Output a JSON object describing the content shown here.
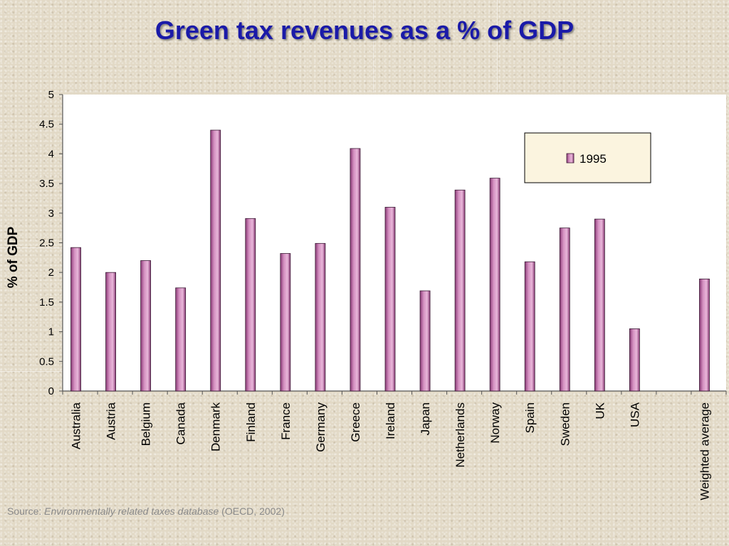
{
  "title": "Green tax revenues as a % of GDP",
  "source": {
    "prefix": "Source: ",
    "name": "Environmentally related taxes database",
    "suffix": " (OECD, 2002)"
  },
  "colors": {
    "title": "#1a1aa8",
    "bar": "#d48fc0",
    "bar_dark": "#8a3a76",
    "plot_bg": "#ffffff",
    "legend_bg": "#fbf4df"
  },
  "chart_data": {
    "type": "bar",
    "title": "Green tax revenues as a % of GDP",
    "xlabel": "",
    "ylabel": "% of GDP",
    "ylim": [
      0,
      5
    ],
    "yticks": [
      "0",
      "0.5",
      "1",
      "1.5",
      "2",
      "2.5",
      "3",
      "3.5",
      "4",
      "4.5",
      "5"
    ],
    "grid": false,
    "legend_position": "top-right",
    "categories": [
      "Australia",
      "Austria",
      "Belgium",
      "Canada",
      "Denmark",
      "Finland",
      "France",
      "Germany",
      "Greece",
      "Ireland",
      "Japan",
      "Netherlands",
      "Norway",
      "Spain",
      "Sweden",
      "UK",
      "USA",
      "",
      "Weighted average"
    ],
    "series": [
      {
        "name": "1995",
        "values": [
          2.42,
          2.0,
          2.2,
          1.74,
          4.4,
          2.91,
          2.32,
          2.49,
          4.09,
          3.1,
          1.69,
          3.39,
          3.59,
          2.18,
          2.75,
          2.9,
          1.05,
          null,
          1.89
        ]
      }
    ]
  }
}
